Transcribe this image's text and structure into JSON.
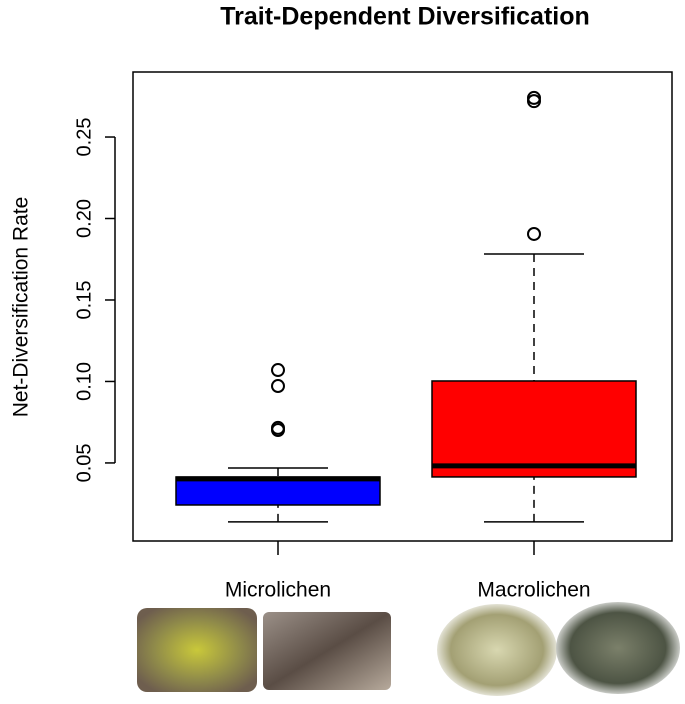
{
  "chart_data": {
    "type": "boxplot",
    "title": "Trait-Dependent Diversification",
    "y_label": "Net-Diversification Rate",
    "categories": [
      "Microlichen",
      "Macrolichen"
    ],
    "colors": [
      "#0000ff",
      "#ff0000"
    ],
    "boxes": [
      {
        "whisker_low": 0.0138,
        "q1": 0.0242,
        "median": 0.0402,
        "q3": 0.0414,
        "whisker_high": 0.0469,
        "outliers": [
          0.107,
          0.0972,
          0.0715,
          0.0702
        ]
      },
      {
        "whisker_low": 0.0138,
        "q1": 0.0414,
        "median": 0.0482,
        "q3": 0.1003,
        "whisker_high": 0.1782,
        "outliers": [
          0.1905,
          0.274,
          0.272
        ]
      }
    ],
    "ylim": [
      0.0021,
      0.2899
    ],
    "yticks": [
      0.05,
      {
        "value": 0.1,
        "label": "0.10"
      },
      0.15,
      {
        "value": 0.2,
        "label": "0.20"
      },
      0.25
    ]
  }
}
